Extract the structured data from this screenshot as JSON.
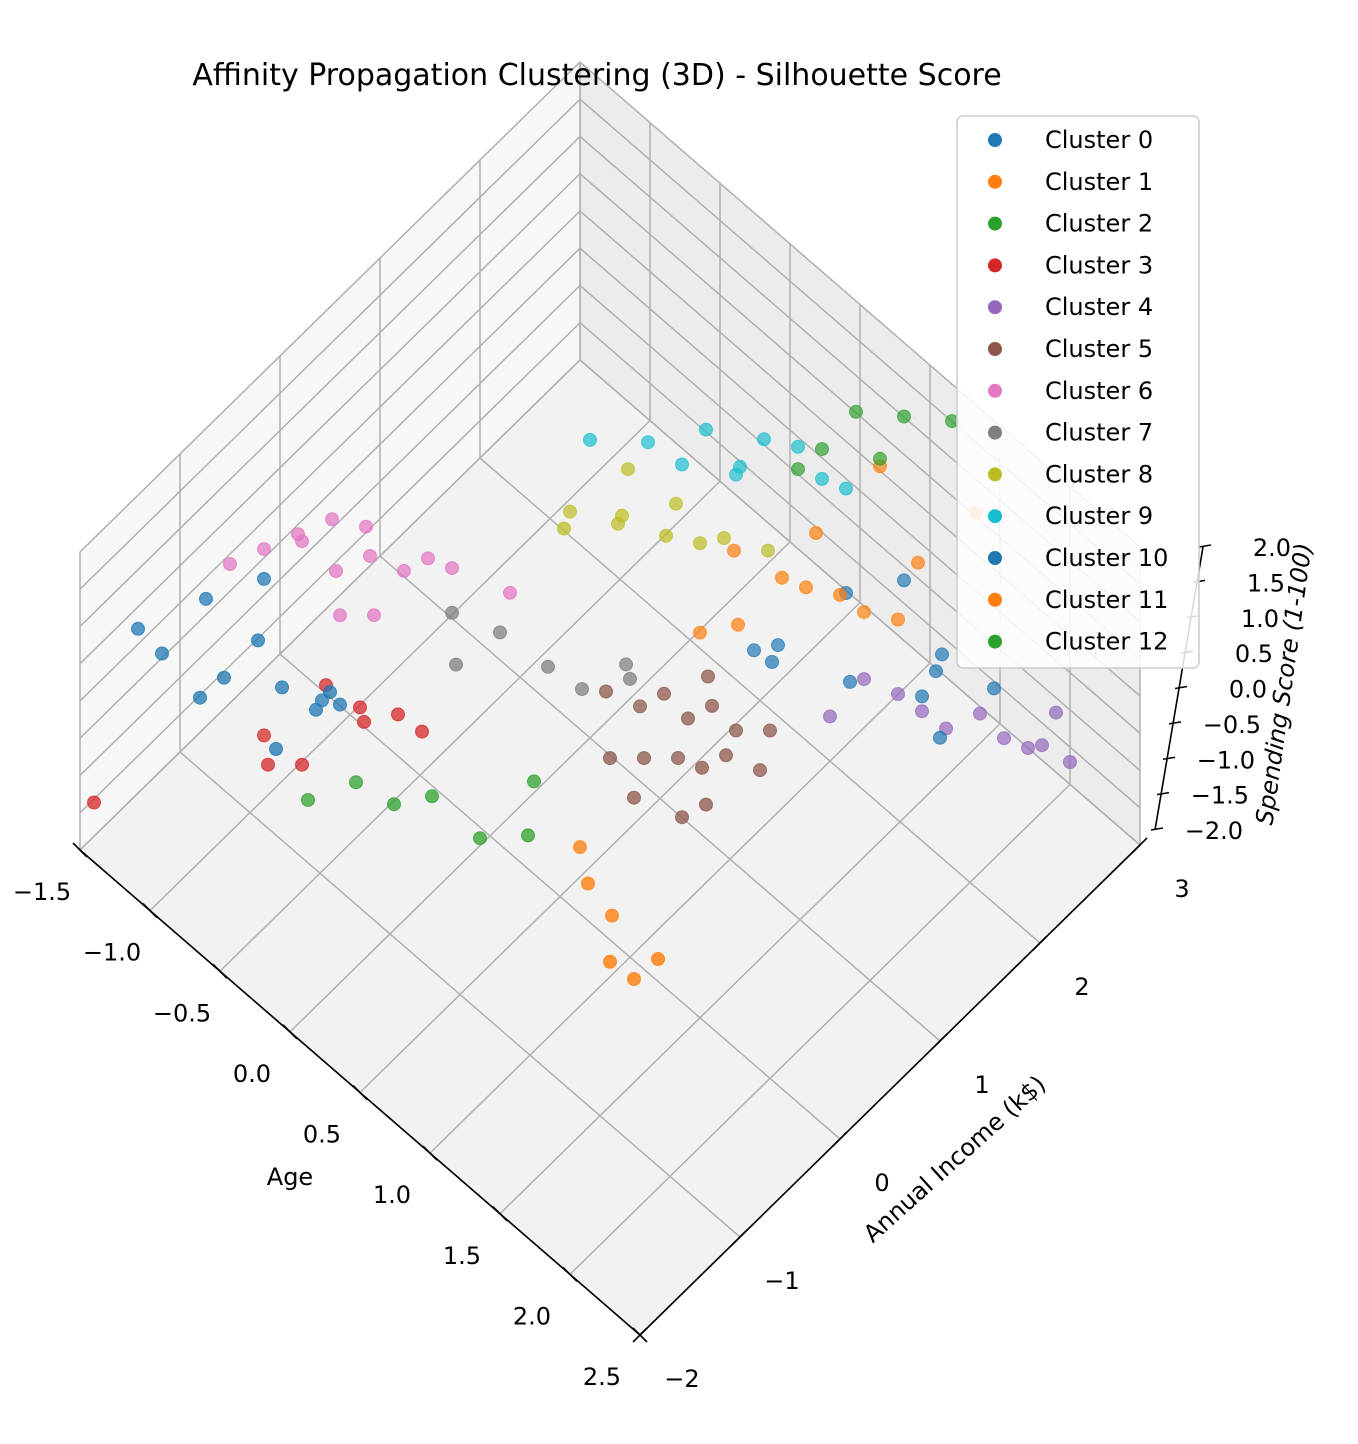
{
  "chart_data": {
    "type": "scatter",
    "projection": "3d",
    "title": "Affinity Propagation Clustering (3D) - Silhouette Score",
    "xlabel": "Age",
    "ylabel": "Annual Income (k$)",
    "zlabel": "Spending Score (1-100)",
    "xlim": [
      -1.5,
      2.5
    ],
    "ylim": [
      -2,
      3
    ],
    "zlim": [
      -2.0,
      2.0
    ],
    "xticks": [
      "−1.5",
      "−1.0",
      "−0.5",
      "0.0",
      "0.5",
      "1.0",
      "1.5",
      "2.0",
      "2.5"
    ],
    "yticks": [
      "−2",
      "−1",
      "0",
      "1",
      "2",
      "3"
    ],
    "zticks": [
      "−2.0",
      "−1.5",
      "−1.0",
      "−0.5",
      "0.0",
      "0.5",
      "1.0",
      "1.5",
      "2.0"
    ],
    "grid": true,
    "legend_position": "top-right",
    "series": [
      {
        "name": "Cluster 0",
        "color": "#1f77b4",
        "points": [
          [
            -1.3,
            -1.7,
            0.9
          ],
          [
            -1.2,
            -1.6,
            0.6
          ],
          [
            -1.0,
            -1.5,
            0.2
          ],
          [
            -1.1,
            -1.3,
            1.1
          ],
          [
            -0.9,
            -1.4,
            0.5
          ],
          [
            -0.8,
            -1.2,
            0.9
          ],
          [
            -0.7,
            -1.1,
            0.3
          ],
          [
            -0.6,
            -1.3,
            -0.1
          ],
          [
            -0.9,
            -1.0,
            1.3
          ],
          [
            -0.7,
            -0.7,
            -0.4
          ],
          [
            -0.5,
            -0.9,
            0.3
          ],
          [
            0.9,
            2.3,
            -0.3
          ],
          [
            1.1,
            2.6,
            -0.2
          ],
          [
            1.0,
            2.2,
            -1.2
          ],
          [
            1.3,
            2.7,
            -1.0
          ],
          [
            1.4,
            2.5,
            -0.8
          ],
          [
            1.5,
            2.4,
            -1.4
          ],
          [
            1.6,
            2.8,
            -1.1
          ],
          [
            0.6,
            1.8,
            -0.9
          ],
          [
            0.8,
            1.7,
            -0.6
          ],
          [
            0.7,
            1.9,
            -0.8
          ]
        ]
      },
      {
        "name": "Cluster 1",
        "color": "#ff7f0e",
        "points": [
          [
            0.5,
            0.2,
            -1.6
          ],
          [
            0.7,
            0.0,
            -1.5
          ],
          [
            0.8,
            0.1,
            -1.9
          ],
          [
            1.0,
            -0.2,
            -1.8
          ],
          [
            1.1,
            -0.1,
            -2.0
          ],
          [
            1.2,
            0.0,
            -1.7
          ]
        ]
      },
      {
        "name": "Cluster 2",
        "color": "#2ca02c",
        "points": [
          [
            -0.6,
            -0.5,
            -1.6
          ],
          [
            -0.4,
            -0.4,
            -1.7
          ],
          [
            -0.2,
            -0.3,
            -1.4
          ],
          [
            0.0,
            -0.1,
            -1.9
          ],
          [
            0.2,
            0.1,
            -1.8
          ],
          [
            -0.8,
            -0.7,
            -1.9
          ],
          [
            0.1,
            0.3,
            -1.5
          ]
        ]
      },
      {
        "name": "Cluster 3",
        "color": "#d62728",
        "points": [
          [
            -0.9,
            -1.0,
            -0.8
          ],
          [
            -0.6,
            -0.8,
            0.1
          ],
          [
            -0.5,
            -0.6,
            -0.3
          ],
          [
            -0.4,
            -0.7,
            -0.2
          ],
          [
            -0.3,
            -0.5,
            -0.2
          ],
          [
            -0.2,
            -0.4,
            -0.4
          ],
          [
            -0.7,
            -0.9,
            -1.0
          ],
          [
            -1.4,
            -2.0,
            -1.2
          ],
          [
            -0.8,
            -1.1,
            -0.9
          ]
        ]
      },
      {
        "name": "Cluster 4",
        "color": "#9467bd",
        "points": [
          [
            1.3,
            2.5,
            -1.5
          ],
          [
            1.4,
            2.6,
            -1.7
          ],
          [
            1.5,
            2.8,
            -1.6
          ],
          [
            1.6,
            2.9,
            -1.9
          ],
          [
            1.7,
            3.0,
            -2.0
          ],
          [
            1.8,
            3.0,
            -1.8
          ],
          [
            1.2,
            2.4,
            -1.3
          ],
          [
            1.9,
            3.0,
            -1.2
          ],
          [
            1.1,
            2.2,
            -1.0
          ],
          [
            1.0,
            2.0,
            -1.4
          ],
          [
            2.0,
            3.0,
            -1.7
          ]
        ]
      },
      {
        "name": "Cluster 5",
        "color": "#8c564b",
        "points": [
          [
            0.4,
            0.6,
            -0.2
          ],
          [
            0.5,
            0.8,
            -0.5
          ],
          [
            0.6,
            0.9,
            -0.3
          ],
          [
            0.7,
            1.0,
            -0.6
          ],
          [
            0.8,
            1.1,
            -0.4
          ],
          [
            0.9,
            1.2,
            -0.7
          ],
          [
            0.6,
            0.7,
            -0.9
          ],
          [
            0.7,
            0.9,
            -1.0
          ],
          [
            0.8,
            1.0,
            -1.1
          ],
          [
            0.9,
            1.1,
            -0.9
          ],
          [
            1.0,
            1.3,
            -1.2
          ],
          [
            0.5,
            0.5,
            -0.8
          ],
          [
            0.6,
            0.6,
            -1.3
          ],
          [
            0.8,
            0.8,
            -1.5
          ],
          [
            0.9,
            0.9,
            -1.3
          ],
          [
            0.7,
            1.2,
            -0.3
          ],
          [
            1.0,
            1.4,
            -0.8
          ]
        ]
      },
      {
        "name": "Cluster 6",
        "color": "#e377c2",
        "points": [
          [
            -1.0,
            -1.2,
            1.6
          ],
          [
            -0.9,
            -1.0,
            1.7
          ],
          [
            -0.8,
            -0.8,
            1.8
          ],
          [
            -0.7,
            -0.6,
            1.9
          ],
          [
            -0.6,
            -0.7,
            1.5
          ],
          [
            -0.5,
            -0.5,
            1.6
          ],
          [
            -0.4,
            -0.3,
            1.3
          ],
          [
            -0.3,
            -0.2,
            1.5
          ],
          [
            -0.7,
            -0.9,
            2.0
          ],
          [
            -0.6,
            -0.4,
            1.7
          ],
          [
            -0.2,
            -0.1,
            1.4
          ],
          [
            -0.5,
            -0.8,
            1.2
          ],
          [
            -0.4,
            -0.6,
            1.1
          ],
          [
            0.0,
            0.2,
            1.0
          ]
        ]
      },
      {
        "name": "Cluster 7",
        "color": "#7f7f7f",
        "points": [
          [
            -0.2,
            -0.1,
            0.8
          ],
          [
            0.0,
            0.1,
            0.6
          ],
          [
            0.2,
            0.3,
            0.2
          ],
          [
            0.3,
            0.5,
            -0.2
          ],
          [
            0.5,
            0.7,
            0.0
          ],
          [
            -0.1,
            -0.2,
            0.4
          ],
          [
            0.4,
            0.8,
            -0.1
          ]
        ]
      },
      {
        "name": "Cluster 8",
        "color": "#bcbd22",
        "points": [
          [
            0.0,
            0.8,
            1.3
          ],
          [
            0.2,
            1.0,
            1.2
          ],
          [
            0.4,
            1.2,
            1.1
          ],
          [
            0.5,
            1.4,
            0.9
          ],
          [
            0.1,
            0.6,
            1.5
          ],
          [
            0.3,
            0.9,
            1.6
          ],
          [
            0.6,
            1.5,
            1.0
          ],
          [
            0.2,
            1.1,
            1.8
          ],
          [
            0.7,
            1.8,
            0.6
          ],
          [
            0.4,
            1.3,
            1.4
          ]
        ]
      },
      {
        "name": "Cluster 9",
        "color": "#17becf",
        "points": [
          [
            0.0,
            1.0,
            2.0
          ],
          [
            0.2,
            1.3,
            1.9
          ],
          [
            0.4,
            1.6,
            2.0
          ],
          [
            0.6,
            1.9,
            1.8
          ],
          [
            0.3,
            1.5,
            1.5
          ],
          [
            0.5,
            1.8,
            1.4
          ],
          [
            0.7,
            2.1,
            1.6
          ],
          [
            0.8,
            2.2,
            1.2
          ],
          [
            0.9,
            2.3,
            1.1
          ],
          [
            0.4,
            1.9,
            1.0
          ]
        ]
      },
      {
        "name": "Cluster 10",
        "color": "#1f77b4",
        "points": [
          [
            -0.6,
            -0.9,
            -0.1
          ],
          [
            -0.5,
            -0.8,
            0.0
          ],
          [
            1.3,
            2.5,
            -1.3
          ]
        ]
      },
      {
        "name": "Cluster 11",
        "color": "#ff7f0e",
        "points": [
          [
            0.6,
            1.6,
            0.7
          ],
          [
            0.8,
            1.8,
            0.4
          ],
          [
            0.9,
            1.9,
            0.3
          ],
          [
            1.0,
            2.1,
            0.1
          ],
          [
            1.1,
            2.2,
            -0.1
          ],
          [
            1.2,
            2.4,
            -0.3
          ],
          [
            0.7,
            1.5,
            0.0
          ],
          [
            0.9,
            2.0,
            0.9
          ],
          [
            1.2,
            2.6,
            0.2
          ],
          [
            1.4,
            2.9,
            0.8
          ],
          [
            1.0,
            2.5,
            1.3
          ],
          [
            0.5,
            1.4,
            -0.3
          ]
        ]
      },
      {
        "name": "Cluster 12",
        "color": "#2ca02c",
        "points": [
          [
            0.9,
            2.4,
            2.0
          ],
          [
            1.1,
            2.6,
            2.0
          ],
          [
            1.3,
            2.8,
            2.0
          ],
          [
            0.8,
            2.2,
            1.6
          ],
          [
            1.0,
            2.5,
            1.4
          ],
          [
            0.7,
            2.1,
            1.3
          ]
        ]
      }
    ]
  }
}
